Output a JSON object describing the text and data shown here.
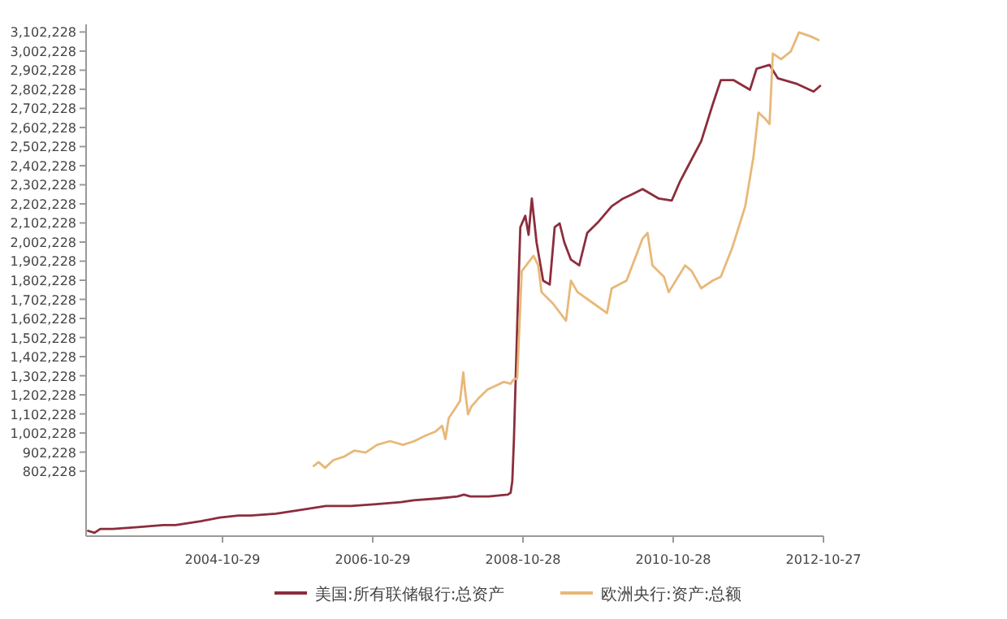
{
  "chart_data": {
    "type": "line",
    "legend": "bottom",
    "xlim": [
      "2003-01-05",
      "2012-10-27"
    ],
    "xticks": [
      "2004-10-29",
      "2006-10-29",
      "2008-10-28",
      "2010-10-28",
      "2012-10-27"
    ],
    "ylim": [
      462228,
      3142228
    ],
    "yticks": [
      {
        "value": 802228,
        "label": "802,228"
      },
      {
        "value": 902228,
        "label": "902,228"
      },
      {
        "value": 1002228,
        "label": "1,002,228"
      },
      {
        "value": 1102228,
        "label": "1,102,228"
      },
      {
        "value": 1202228,
        "label": "1,202,228"
      },
      {
        "value": 1302228,
        "label": "1,302,228"
      },
      {
        "value": 1402228,
        "label": "1,402,228"
      },
      {
        "value": 1502228,
        "label": "1,502,228"
      },
      {
        "value": 1602228,
        "label": "1,602,228"
      },
      {
        "value": 1702228,
        "label": "1,702,228"
      },
      {
        "value": 1802228,
        "label": "1,802,228"
      },
      {
        "value": 1902228,
        "label": "1,902,228"
      },
      {
        "value": 2002228,
        "label": "2,002,228"
      },
      {
        "value": 2102228,
        "label": "2,102,228"
      },
      {
        "value": 2202228,
        "label": "2,202,228"
      },
      {
        "value": 2302228,
        "label": "2,302,228"
      },
      {
        "value": 2402228,
        "label": "2,402,228"
      },
      {
        "value": 2502228,
        "label": "2,502,228"
      },
      {
        "value": 2602228,
        "label": "2,602,228"
      },
      {
        "value": 2702228,
        "label": "2,702,228"
      },
      {
        "value": 2802228,
        "label": "2,802,228"
      },
      {
        "value": 2902228,
        "label": "2,902,228"
      },
      {
        "value": 3002228,
        "label": "3,002,228"
      },
      {
        "value": 3102228,
        "label": "3,102,228"
      }
    ],
    "series": [
      {
        "name": "美国:所有联储银行:总资产",
        "color": "#8c2d3c",
        "x": [
          "2003-01-15",
          "2003-02-15",
          "2003-03-15",
          "2003-05-15",
          "2003-09-15",
          "2004-01-15",
          "2004-03-15",
          "2004-07-15",
          "2004-10-15",
          "2005-01-15",
          "2005-03-15",
          "2005-07-15",
          "2005-11-15",
          "2006-03-15",
          "2006-07-15",
          "2006-11-15",
          "2007-03-15",
          "2007-05-15",
          "2007-09-15",
          "2007-12-15",
          "2008-01-15",
          "2008-02-15",
          "2008-05-15",
          "2008-08-15",
          "2008-08-29",
          "2008-09-06",
          "2008-09-14",
          "2008-09-30",
          "2008-10-15",
          "2008-11-08",
          "2008-11-24",
          "2008-12-10",
          "2009-01-02",
          "2009-02-03",
          "2009-03-07",
          "2009-03-31",
          "2009-04-24",
          "2009-05-17",
          "2009-06-18",
          "2009-07-28",
          "2009-09-05",
          "2009-10-31",
          "2010-01-02",
          "2010-02-26",
          "2010-04-07",
          "2010-06-01",
          "2010-08-19",
          "2010-10-21",
          "2010-11-30",
          "2011-01-08",
          "2011-03-13",
          "2011-05-07",
          "2011-06-16",
          "2011-08-18",
          "2011-11-05",
          "2011-12-07",
          "2012-02-08",
          "2012-03-19",
          "2012-06-22",
          "2012-09-09",
          "2012-10-11"
        ],
        "values": [
          490000,
          480000,
          500000,
          500000,
          510000,
          520000,
          520000,
          540000,
          560000,
          570000,
          570000,
          580000,
          600000,
          620000,
          620000,
          630000,
          640000,
          650000,
          660000,
          670000,
          680000,
          670000,
          670000,
          680000,
          690000,
          750000,
          970000,
          1570000,
          2080000,
          2140000,
          2040000,
          2230000,
          2000000,
          1800000,
          1780000,
          2080000,
          2100000,
          2000000,
          1910000,
          1880000,
          2050000,
          2110000,
          2190000,
          2230000,
          2250000,
          2280000,
          2230000,
          2220000,
          2320000,
          2400000,
          2530000,
          2720000,
          2850000,
          2850000,
          2800000,
          2910000,
          2930000,
          2860000,
          2830000,
          2790000,
          2820000
        ]
      },
      {
        "name": "欧洲央行:资产:总额",
        "color": "#e8b878",
        "x": [
          "2006-01-15",
          "2006-02-08",
          "2006-03-11",
          "2006-04-20",
          "2006-06-14",
          "2006-07-31",
          "2006-09-24",
          "2006-11-19",
          "2007-01-21",
          "2007-03-25",
          "2007-05-19",
          "2007-07-14",
          "2007-08-30",
          "2007-10-01",
          "2007-10-17",
          "2007-11-02",
          "2007-12-03",
          "2007-12-27",
          "2008-01-12",
          "2008-01-20",
          "2008-02-04",
          "2008-02-20",
          "2008-03-31",
          "2008-05-09",
          "2008-06-18",
          "2008-07-27",
          "2008-08-29",
          "2008-09-10",
          "2008-09-30",
          "2008-10-22",
          "2008-12-18",
          "2009-01-10",
          "2009-01-26",
          "2009-03-23",
          "2009-05-25",
          "2009-06-18",
          "2009-07-20",
          "2009-10-07",
          "2009-12-10",
          "2010-01-02",
          "2010-03-15",
          "2010-06-01",
          "2010-06-25",
          "2010-07-19",
          "2010-09-13",
          "2010-10-06",
          "2010-12-25",
          "2011-01-26",
          "2011-03-13",
          "2011-05-07",
          "2011-06-16",
          "2011-08-10",
          "2011-10-13",
          "2011-11-22",
          "2011-12-16",
          "2012-01-16",
          "2012-02-08",
          "2012-02-24",
          "2012-04-04",
          "2012-05-21",
          "2012-06-30",
          "2012-08-24",
          "2012-10-03"
        ],
        "values": [
          830000,
          850000,
          820000,
          860000,
          880000,
          910000,
          900000,
          940000,
          960000,
          940000,
          960000,
          990000,
          1010000,
          1040000,
          970000,
          1080000,
          1130000,
          1170000,
          1320000,
          1230000,
          1100000,
          1140000,
          1190000,
          1230000,
          1250000,
          1270000,
          1260000,
          1280000,
          1290000,
          1850000,
          1930000,
          1880000,
          1740000,
          1680000,
          1590000,
          1800000,
          1740000,
          1680000,
          1630000,
          1760000,
          1800000,
          2020000,
          2050000,
          1880000,
          1820000,
          1740000,
          1880000,
          1850000,
          1760000,
          1800000,
          1820000,
          1970000,
          2190000,
          2450000,
          2680000,
          2650000,
          2620000,
          2990000,
          2960000,
          3000000,
          3100000,
          3080000,
          3060000
        ]
      }
    ]
  }
}
